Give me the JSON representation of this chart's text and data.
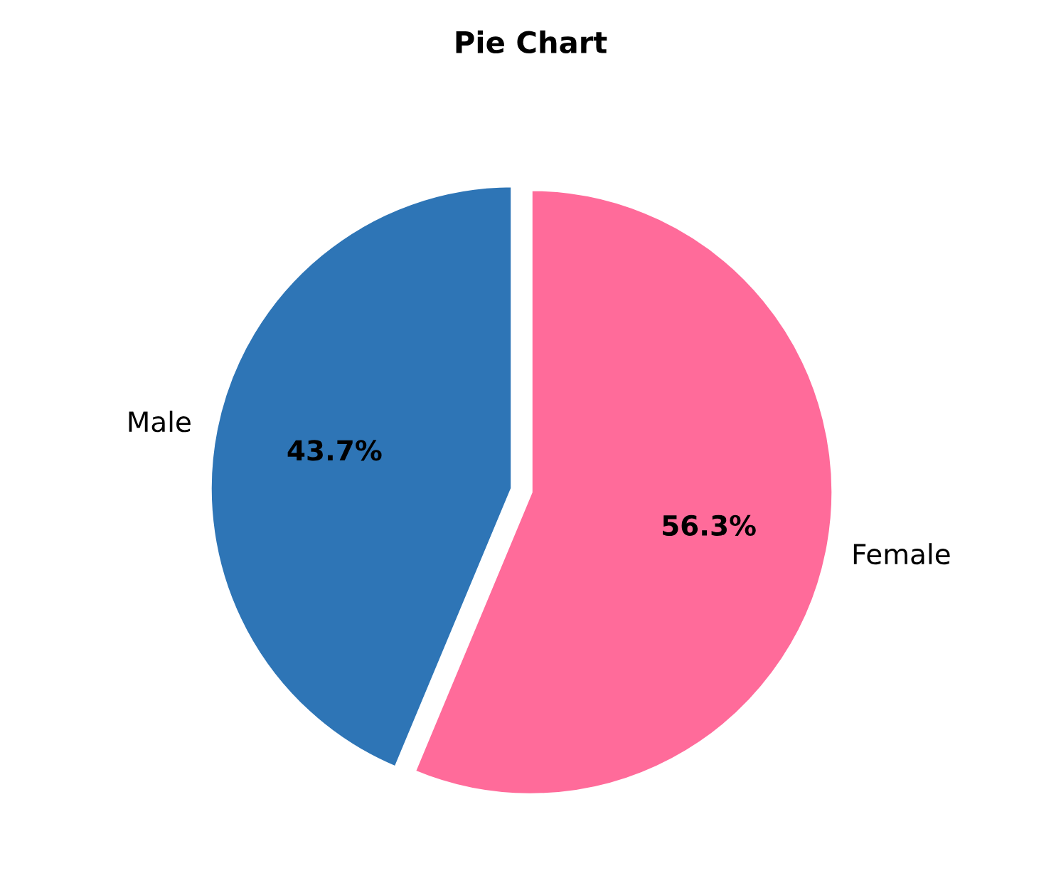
{
  "chart_data": {
    "type": "pie",
    "title": "Pie Chart",
    "categories": [
      "Male",
      "Female"
    ],
    "values": [
      43.7,
      56.3
    ],
    "colors": [
      "#2e75b6",
      "#ff6b9a"
    ],
    "value_labels": [
      "43.7%",
      "56.3%"
    ]
  }
}
